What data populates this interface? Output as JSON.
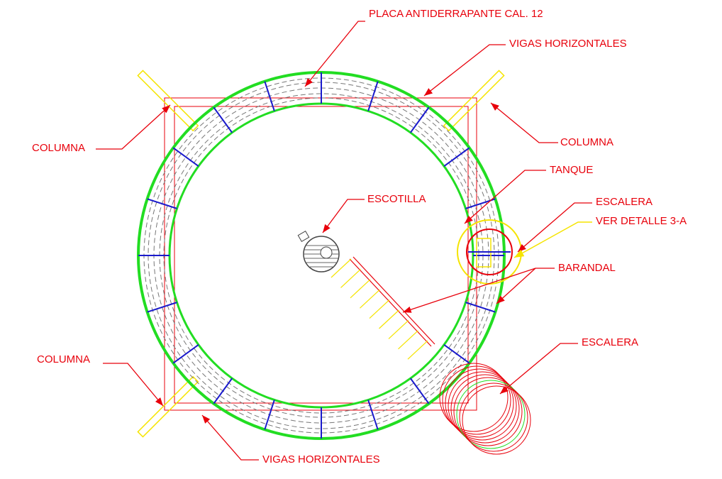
{
  "annotations": [
    "PLACA ANTIDERRAPANTE CAL. 12",
    "VIGAS HORIZONTALES",
    "COLUMNA",
    "COLUMNA",
    "TANQUE",
    "ESCOTILLA",
    "ESCALERA",
    "VER DETALLE 3-A",
    "BARANDAL",
    "COLUMNA",
    "ESCALERA",
    "VIGAS HORIZONTALES"
  ]
}
